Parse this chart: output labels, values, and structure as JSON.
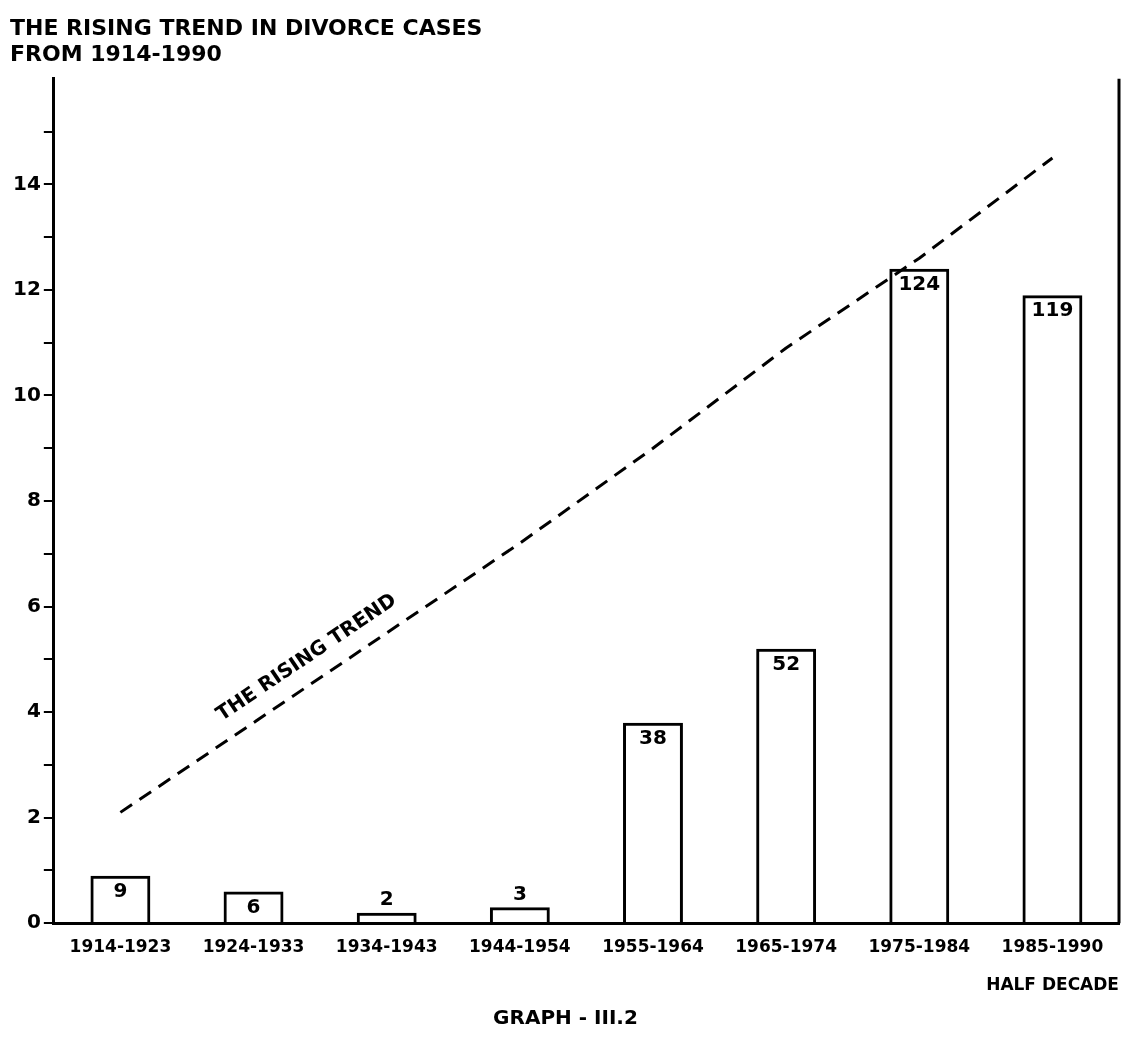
{
  "chart_data": {
    "type": "bar",
    "title": "THE RISING TREND IN DIVORCE CASES\nFROM 1914-1990",
    "xlabel": "HALF DECADE",
    "categories": [
      "1914-1923",
      "1924-1933",
      "1934-1943",
      "1944-1954",
      "1955-1964",
      "1965-1974",
      "1975-1984",
      "1985-1990"
    ],
    "series": [
      {
        "color": "#000000",
        "values": [
          0.9,
          0.6,
          0.2,
          0.3,
          3.8,
          5.2,
          12.4,
          11.9
        ]
      },
      {
        "type": "line",
        "name": "THE RISING TREND",
        "color": "#000000",
        "line_style": "dashed",
        "marker": "none",
        "values": [
          2.1,
          3.8,
          5.5,
          7.2,
          9.0,
          10.9,
          12.6,
          14.5
        ]
      }
    ],
    "ylim": [
      0,
      16
    ],
    "yticks": [
      0,
      {
        "value": 1,
        "label": null
      },
      2,
      {
        "value": 3,
        "label": null
      },
      4,
      {
        "value": 5,
        "label": null
      },
      6,
      {
        "value": 7,
        "label": null
      },
      8,
      {
        "value": 9,
        "label": null
      },
      10,
      {
        "value": 11,
        "label": null
      },
      12,
      {
        "value": 13,
        "label": null
      },
      14,
      {
        "value": 15,
        "label": null
      }
    ],
    "grid": false,
    "legend": false,
    "annotations": [
      {
        "text": "9",
        "x": "1914-1923",
        "y": 0.9
      },
      {
        "text": "6",
        "x": "1924-1933",
        "y": 0.6
      },
      {
        "text": "2",
        "x": "1934-1943",
        "y": 0.2
      },
      {
        "text": "3",
        "x": "1944-1954",
        "y": 0.3
      },
      {
        "text": "38",
        "x": "1955-1964",
        "y": 3.8
      },
      {
        "text": "52",
        "x": "1965-1974",
        "y": 5.2
      },
      {
        "text": "124",
        "x": "1975-1984",
        "y": 12.4
      },
      {
        "text": "119",
        "x": "1985-1990",
        "y": 11.9
      },
      "GRAPH - III.2"
    ]
  }
}
